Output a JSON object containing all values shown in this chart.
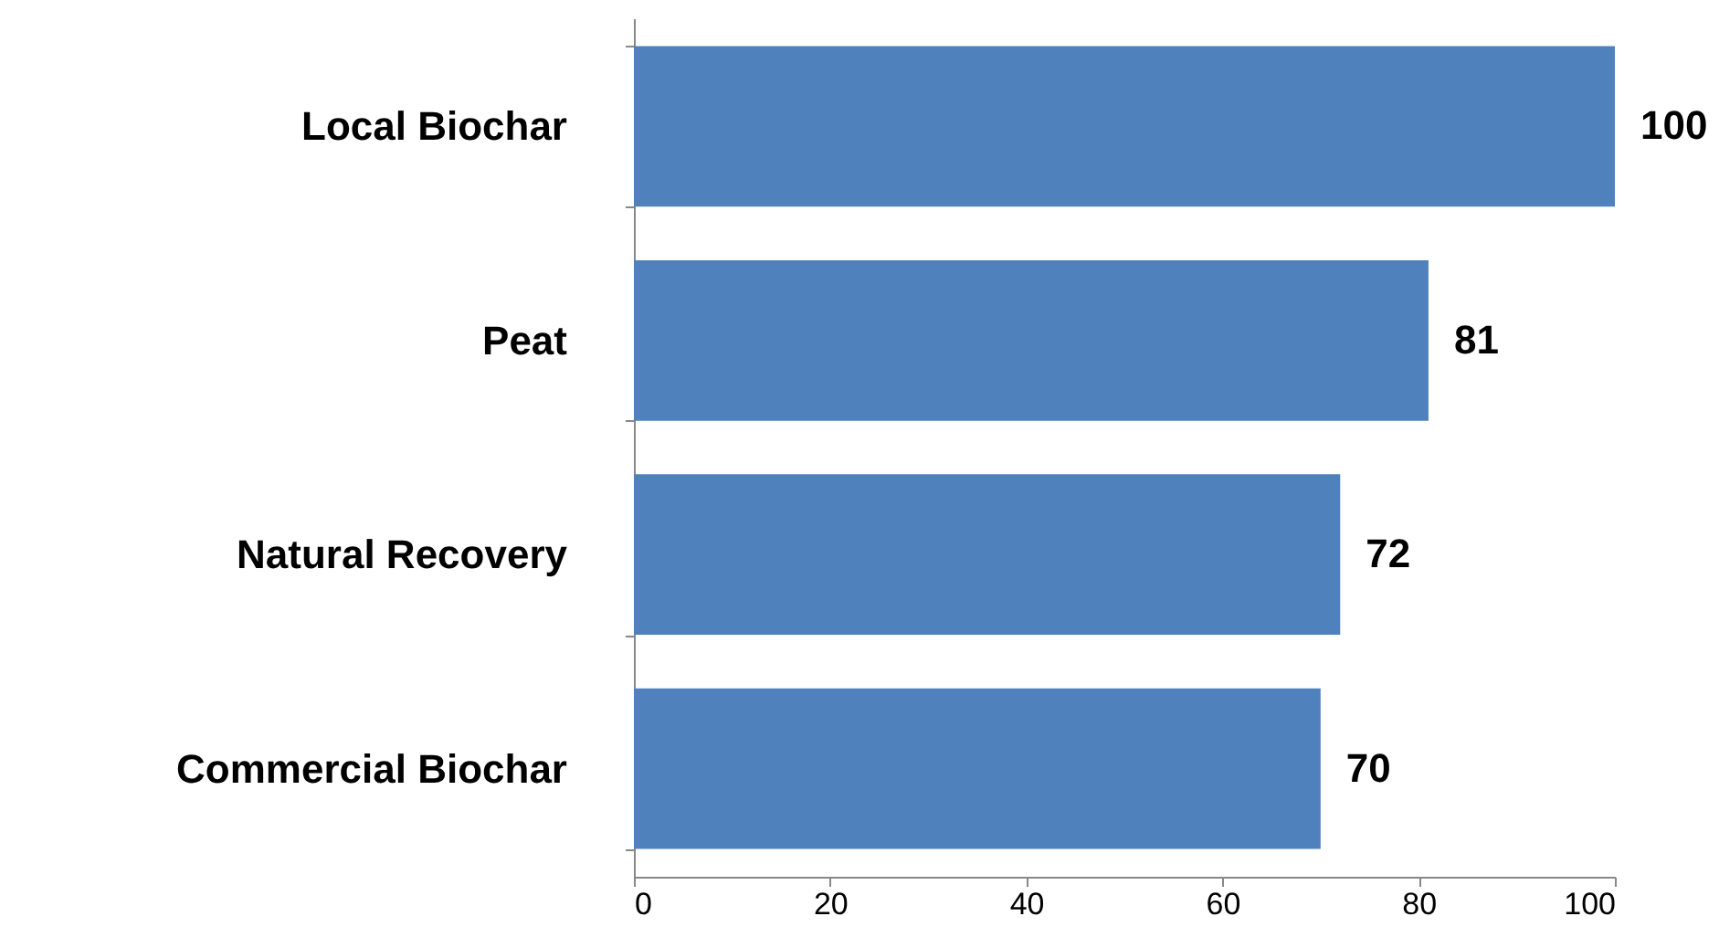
{
  "chart_data": {
    "type": "bar",
    "orientation": "horizontal",
    "categories": [
      "Local Biochar",
      "Peat",
      "Natural Recovery",
      "Commercial Biochar"
    ],
    "values": [
      100,
      81,
      72,
      70
    ],
    "color": "#4f81bd",
    "xlim": [
      0,
      100
    ],
    "xticks": [
      0,
      20,
      40,
      60,
      80,
      100
    ],
    "grid": false,
    "data_labels": true
  }
}
